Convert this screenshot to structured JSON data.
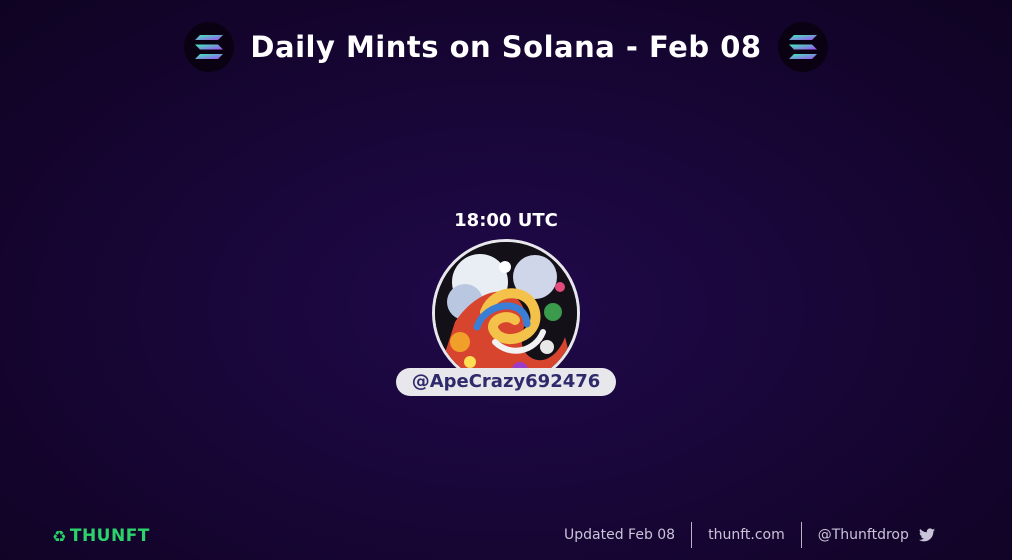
{
  "header": {
    "title": "Daily Mints on Solana - Feb 08",
    "left_icon": "solana-logo-icon",
    "right_icon": "solana-logo-icon"
  },
  "slot": {
    "time": "18:00 UTC",
    "handle": "@ApeCrazy692476",
    "avatar": "abstract-art-avatar"
  },
  "footer": {
    "brand": "THUNFT",
    "updated": "Updated Feb 08",
    "site": "thunft.com",
    "twitter_handle": "@Thunftdrop",
    "twitter_icon": "twitter-icon"
  },
  "colors": {
    "background": "#180638",
    "brand_green": "#2bd36a",
    "pill": "#e7e7ec",
    "handle_text": "#2e2a6b"
  }
}
